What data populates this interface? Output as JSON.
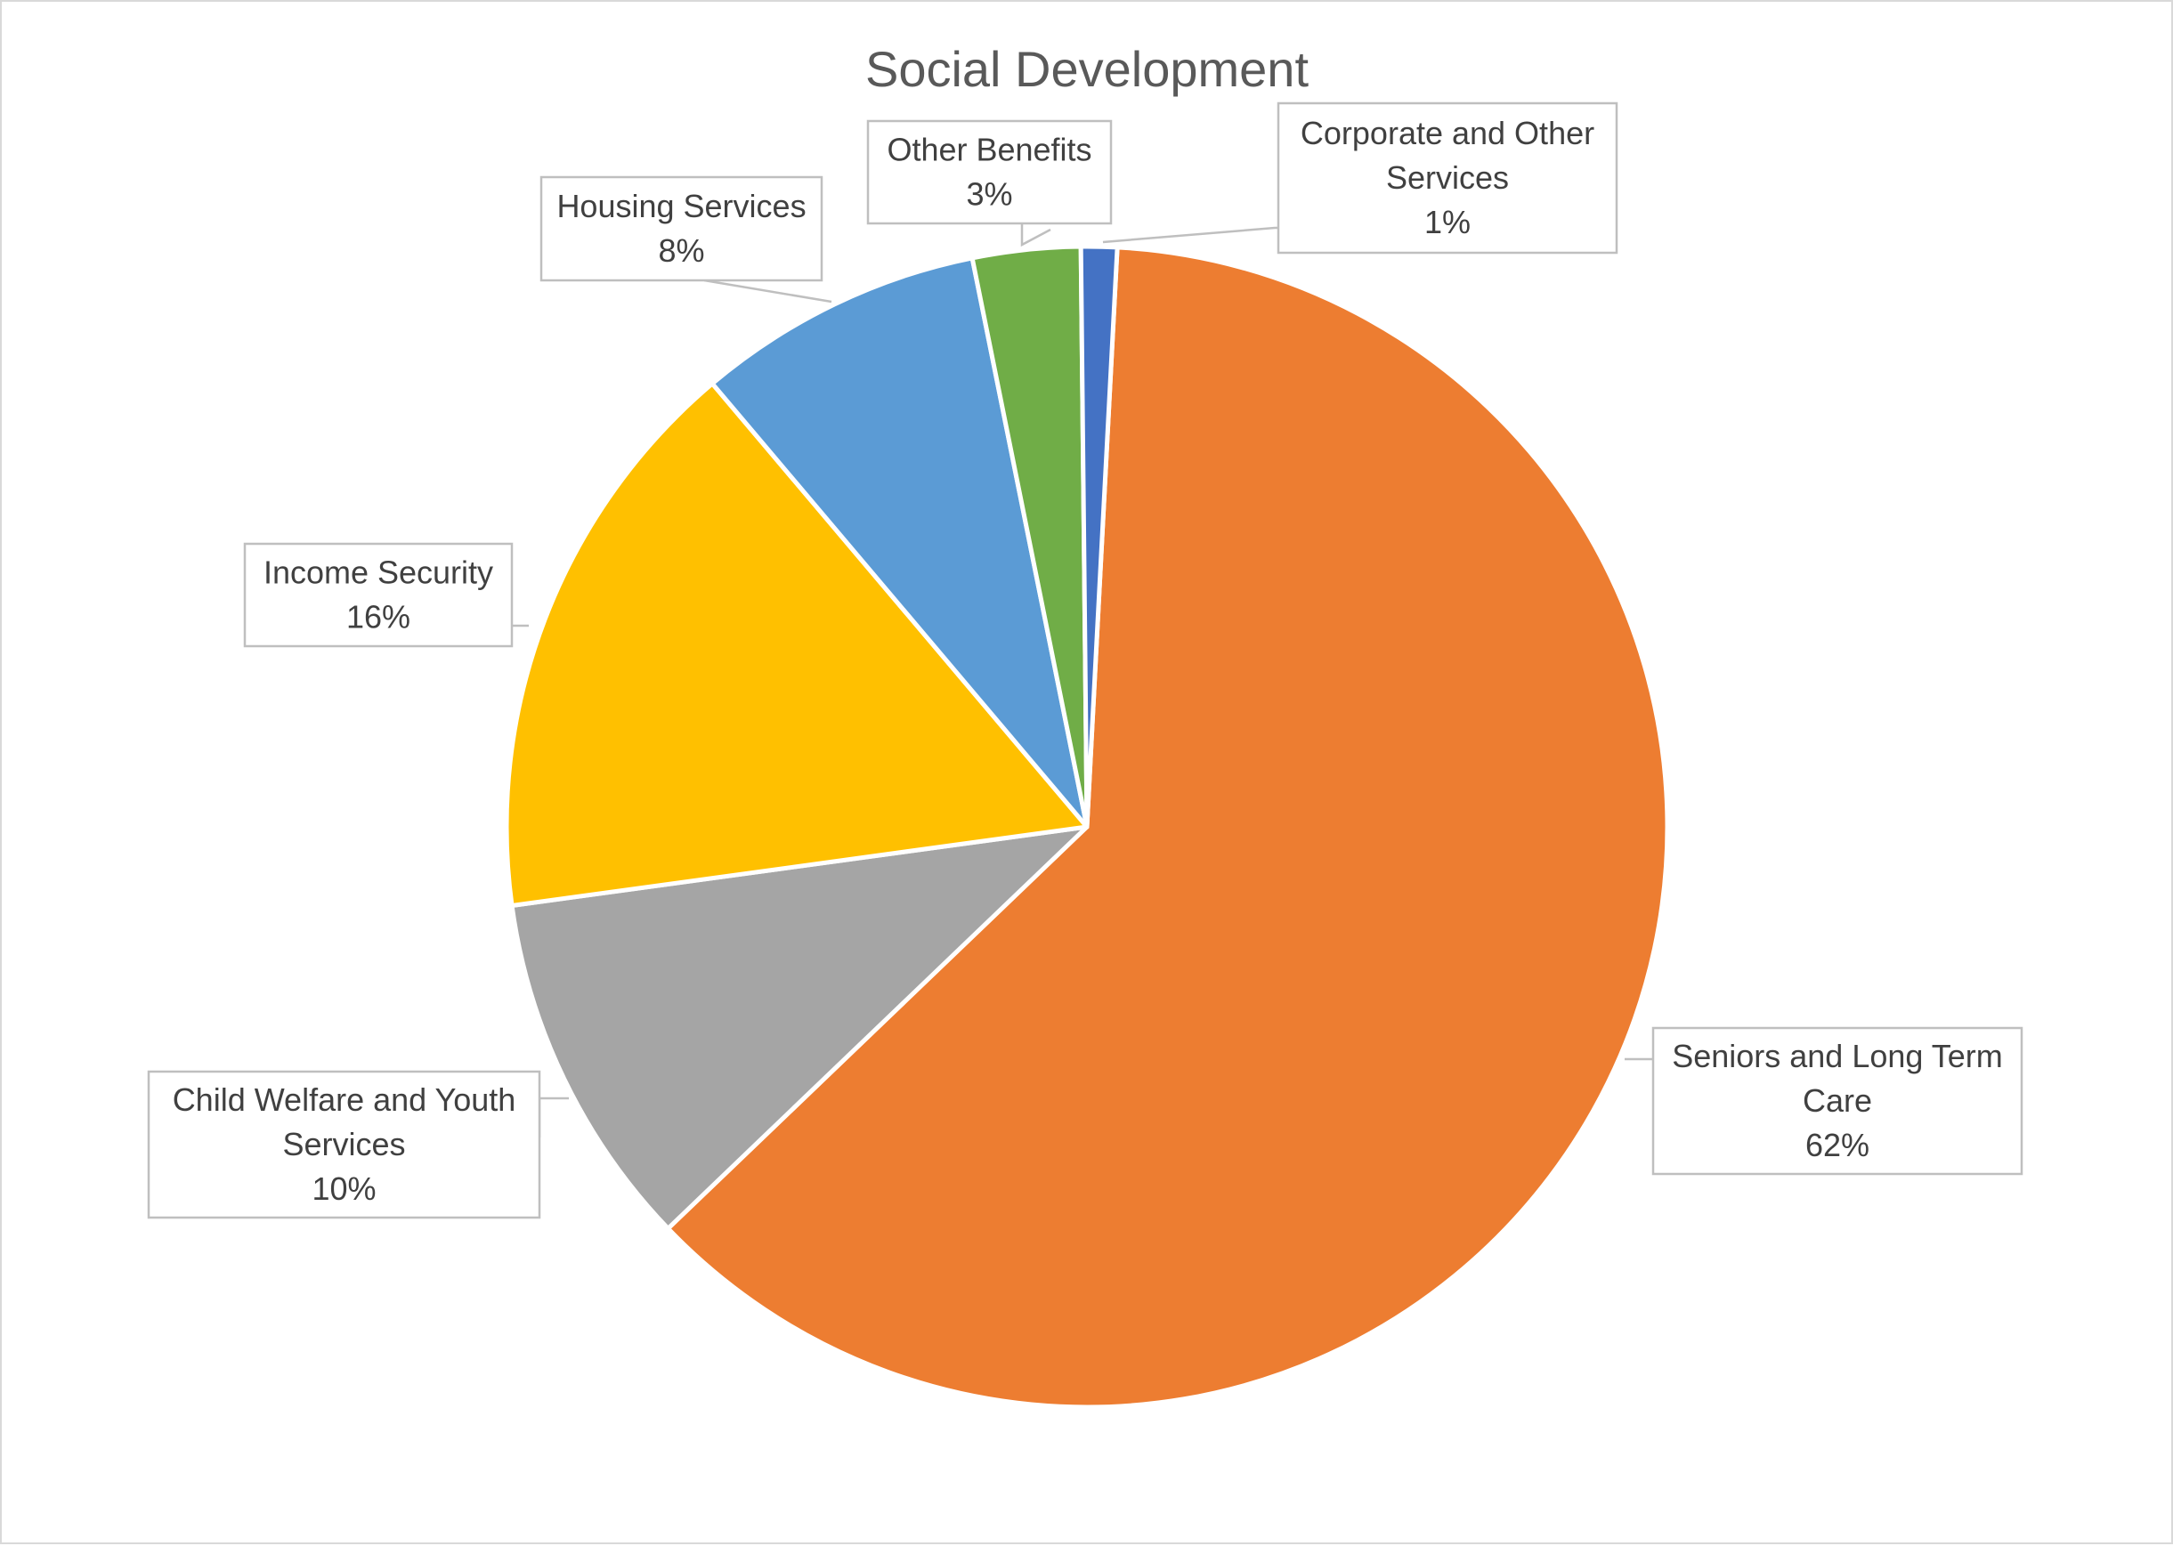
{
  "chart_data": {
    "type": "pie",
    "title": "Social Development",
    "slices": [
      {
        "name": "Seniors and Long Term Care",
        "label_lines": [
          "Seniors and Long Term",
          "Care"
        ],
        "value": 62,
        "label": "62%",
        "color": "#ED7D31"
      },
      {
        "name": "Child Welfare and Youth Services",
        "label_lines": [
          "Child Welfare and Youth",
          "Services"
        ],
        "value": 10,
        "label": "10%",
        "color": "#A5A5A5"
      },
      {
        "name": "Income Security",
        "label_lines": [
          "Income Security"
        ],
        "value": 16,
        "label": "16%",
        "color": "#FFC000"
      },
      {
        "name": "Housing Services",
        "label_lines": [
          "Housing Services"
        ],
        "value": 8,
        "label": "8%",
        "color": "#5B9BD5"
      },
      {
        "name": "Other Benefits",
        "label_lines": [
          "Other Benefits"
        ],
        "value": 3,
        "label": "3%",
        "color": "#70AD47"
      },
      {
        "name": "Corporate and Other Services",
        "label_lines": [
          "Corporate and Other",
          "Services"
        ],
        "value": 1,
        "label": "1%",
        "color": "#4472C4"
      }
    ],
    "legend": "none",
    "data_labels": "callouts"
  }
}
